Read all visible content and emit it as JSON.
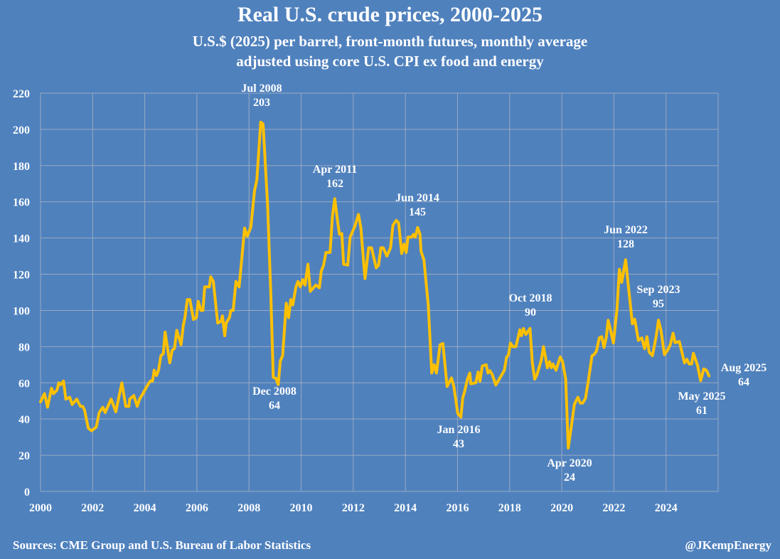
{
  "title": "Real U.S. crude prices, 2000-2025",
  "subtitle_1": "U.S.$ (2025) per barrel, front-month futures, monthly average",
  "subtitle_2": "adjusted using core U.S. CPI ex food and energy",
  "footer": {
    "source": "Sources: CME Group and U.S. Bureau of Labor Statistics",
    "handle": "@JKempEnergy"
  },
  "colors": {
    "background": "#4F81BD",
    "line": "#FFC000",
    "grid": "#9AAAC2",
    "text": "#FFFFFF"
  },
  "chart_data": {
    "type": "line",
    "title": "Real U.S. crude prices, 2000-2025",
    "xlabel": "",
    "ylabel": "U.S.$ (2025) per barrel",
    "xlim": [
      2000,
      2026
    ],
    "ylim": [
      0,
      220
    ],
    "x_ticks": [
      "2000",
      "2002",
      "2004",
      "2006",
      "2008",
      "2010",
      "2012",
      "2014",
      "2016",
      "2018",
      "2020",
      "2022",
      "2024"
    ],
    "y_ticks": [
      "0",
      "20",
      "40",
      "60",
      "80",
      "100",
      "120",
      "140",
      "160",
      "180",
      "200",
      "220"
    ],
    "grid": true,
    "series": [
      {
        "name": "Real crude price",
        "points": [
          [
            2000.0,
            49.5
          ],
          [
            2000.15,
            54
          ],
          [
            2000.27,
            46.5
          ],
          [
            2000.42,
            57
          ],
          [
            2000.5,
            54
          ],
          [
            2000.63,
            56
          ],
          [
            2000.7,
            60
          ],
          [
            2000.78,
            59
          ],
          [
            2000.88,
            61
          ],
          [
            2000.97,
            51
          ],
          [
            2001.12,
            52
          ],
          [
            2001.21,
            48
          ],
          [
            2001.39,
            51
          ],
          [
            2001.53,
            47
          ],
          [
            2001.62,
            47
          ],
          [
            2001.69,
            45
          ],
          [
            2001.83,
            35
          ],
          [
            2001.96,
            33.5
          ],
          [
            2002.14,
            35.6
          ],
          [
            2002.25,
            43.6
          ],
          [
            2002.39,
            46.5
          ],
          [
            2002.48,
            43.6
          ],
          [
            2002.71,
            51
          ],
          [
            2002.89,
            44
          ],
          [
            2003.12,
            60
          ],
          [
            2003.27,
            47
          ],
          [
            2003.39,
            47
          ],
          [
            2003.42,
            51
          ],
          [
            2003.58,
            53
          ],
          [
            2003.71,
            47
          ],
          [
            2003.8,
            51
          ],
          [
            2003.93,
            54
          ],
          [
            2004.08,
            58
          ],
          [
            2004.21,
            61
          ],
          [
            2004.3,
            61
          ],
          [
            2004.36,
            67
          ],
          [
            2004.45,
            64
          ],
          [
            2004.53,
            67
          ],
          [
            2004.62,
            75
          ],
          [
            2004.71,
            76
          ],
          [
            2004.78,
            88
          ],
          [
            2004.96,
            71
          ],
          [
            2005.05,
            78
          ],
          [
            2005.14,
            79
          ],
          [
            2005.23,
            89
          ],
          [
            2005.39,
            81
          ],
          [
            2005.48,
            92
          ],
          [
            2005.54,
            96
          ],
          [
            2005.63,
            106
          ],
          [
            2005.73,
            106
          ],
          [
            2005.87,
            95
          ],
          [
            2005.98,
            96
          ],
          [
            2006.05,
            105
          ],
          [
            2006.16,
            100
          ],
          [
            2006.23,
            100
          ],
          [
            2006.3,
            113
          ],
          [
            2006.48,
            113
          ],
          [
            2006.53,
            118.6
          ],
          [
            2006.63,
            116
          ],
          [
            2006.8,
            93
          ],
          [
            2006.93,
            94
          ],
          [
            2006.98,
            97
          ],
          [
            2007.07,
            86
          ],
          [
            2007.12,
            93
          ],
          [
            2007.25,
            96
          ],
          [
            2007.3,
            100
          ],
          [
            2007.39,
            100
          ],
          [
            2007.5,
            116
          ],
          [
            2007.62,
            113
          ],
          [
            2007.71,
            126.6
          ],
          [
            2007.83,
            145.5
          ],
          [
            2007.93,
            141
          ],
          [
            2008.07,
            146
          ],
          [
            2008.21,
            166
          ],
          [
            2008.3,
            172
          ],
          [
            2008.45,
            204
          ],
          [
            2008.54,
            203
          ],
          [
            2008.71,
            158.6
          ],
          [
            2008.84,
            107.7
          ],
          [
            2008.93,
            63
          ],
          [
            2009.03,
            62.5
          ],
          [
            2009.12,
            59
          ],
          [
            2009.2,
            72
          ],
          [
            2009.29,
            75
          ],
          [
            2009.43,
            104
          ],
          [
            2009.52,
            96
          ],
          [
            2009.6,
            106
          ],
          [
            2009.68,
            103
          ],
          [
            2009.8,
            113
          ],
          [
            2009.88,
            116
          ],
          [
            2009.97,
            113
          ],
          [
            2010.06,
            117
          ],
          [
            2010.15,
            114
          ],
          [
            2010.26,
            125.5
          ],
          [
            2010.35,
            110.5
          ],
          [
            2010.56,
            114
          ],
          [
            2010.7,
            112.5
          ],
          [
            2010.77,
            121.6
          ],
          [
            2010.86,
            125
          ],
          [
            2010.95,
            132
          ],
          [
            2011.11,
            132
          ],
          [
            2011.2,
            152
          ],
          [
            2011.29,
            161.7
          ],
          [
            2011.41,
            148
          ],
          [
            2011.47,
            142
          ],
          [
            2011.56,
            142.5
          ],
          [
            2011.63,
            125.5
          ],
          [
            2011.79,
            125
          ],
          [
            2011.88,
            140.5
          ],
          [
            2012.06,
            146.4
          ],
          [
            2012.2,
            153
          ],
          [
            2012.29,
            145.8
          ],
          [
            2012.45,
            117.6
          ],
          [
            2012.59,
            134.6
          ],
          [
            2012.7,
            134.6
          ],
          [
            2012.88,
            123.5
          ],
          [
            2012.97,
            125
          ],
          [
            2013.06,
            134.6
          ],
          [
            2013.15,
            134.6
          ],
          [
            2013.29,
            130
          ],
          [
            2013.43,
            134.6
          ],
          [
            2013.52,
            147
          ],
          [
            2013.65,
            149.7
          ],
          [
            2013.74,
            148.4
          ],
          [
            2013.86,
            131.4
          ],
          [
            2013.95,
            136.6
          ],
          [
            2014.03,
            132
          ],
          [
            2014.1,
            140.5
          ],
          [
            2014.24,
            140.5
          ],
          [
            2014.31,
            142
          ],
          [
            2014.38,
            140.5
          ],
          [
            2014.47,
            145.8
          ],
          [
            2014.56,
            142
          ],
          [
            2014.6,
            132.7
          ],
          [
            2014.71,
            128
          ],
          [
            2014.88,
            102.6
          ],
          [
            2015.01,
            65.4
          ],
          [
            2015.1,
            70
          ],
          [
            2015.19,
            65.4
          ],
          [
            2015.33,
            81
          ],
          [
            2015.44,
            81.7
          ],
          [
            2015.6,
            58
          ],
          [
            2015.77,
            62.7
          ],
          [
            2015.86,
            58
          ],
          [
            2016.01,
            43
          ],
          [
            2016.13,
            41
          ],
          [
            2016.2,
            51.6
          ],
          [
            2016.28,
            55.6
          ],
          [
            2016.38,
            62
          ],
          [
            2016.47,
            65.4
          ],
          [
            2016.51,
            59.5
          ],
          [
            2016.7,
            60
          ],
          [
            2016.79,
            66
          ],
          [
            2016.86,
            60.8
          ],
          [
            2016.95,
            69.3
          ],
          [
            2017.1,
            70
          ],
          [
            2017.17,
            65.4
          ],
          [
            2017.24,
            66.7
          ],
          [
            2017.33,
            64.7
          ],
          [
            2017.47,
            58.8
          ],
          [
            2017.6,
            62
          ],
          [
            2017.8,
            67
          ],
          [
            2017.88,
            74
          ],
          [
            2017.96,
            75.6
          ],
          [
            2018.03,
            82
          ],
          [
            2018.12,
            80
          ],
          [
            2018.24,
            80
          ],
          [
            2018.39,
            89.3
          ],
          [
            2018.45,
            86
          ],
          [
            2018.53,
            90
          ],
          [
            2018.62,
            86.7
          ],
          [
            2018.78,
            90
          ],
          [
            2018.87,
            71
          ],
          [
            2018.96,
            62
          ],
          [
            2019.05,
            64.6
          ],
          [
            2019.21,
            72.3
          ],
          [
            2019.3,
            80
          ],
          [
            2019.45,
            68.3
          ],
          [
            2019.53,
            71.7
          ],
          [
            2019.6,
            68.3
          ],
          [
            2019.66,
            70.4
          ],
          [
            2019.78,
            67
          ],
          [
            2019.94,
            74.3
          ],
          [
            2020.03,
            71.7
          ],
          [
            2020.15,
            62
          ],
          [
            2020.25,
            24
          ],
          [
            2020.39,
            38.4
          ],
          [
            2020.48,
            48
          ],
          [
            2020.62,
            52
          ],
          [
            2020.71,
            48.8
          ],
          [
            2020.8,
            48.8
          ],
          [
            2020.91,
            51.4
          ],
          [
            2021.03,
            62
          ],
          [
            2021.16,
            75
          ],
          [
            2021.24,
            75.6
          ],
          [
            2021.33,
            77.5
          ],
          [
            2021.44,
            84.8
          ],
          [
            2021.53,
            85.5
          ],
          [
            2021.62,
            79.5
          ],
          [
            2021.71,
            85.5
          ],
          [
            2021.78,
            94.6
          ],
          [
            2021.87,
            89.4
          ],
          [
            2021.98,
            82
          ],
          [
            2022.12,
            101
          ],
          [
            2022.21,
            122.7
          ],
          [
            2022.3,
            115.5
          ],
          [
            2022.45,
            128
          ],
          [
            2022.54,
            115.5
          ],
          [
            2022.71,
            92.6
          ],
          [
            2022.8,
            95.2
          ],
          [
            2022.94,
            83.5
          ],
          [
            2023.07,
            84.8
          ],
          [
            2023.18,
            78.9
          ],
          [
            2023.27,
            85.5
          ],
          [
            2023.35,
            77
          ],
          [
            2023.48,
            75
          ],
          [
            2023.62,
            85.5
          ],
          [
            2023.71,
            94.6
          ],
          [
            2023.8,
            89.4
          ],
          [
            2023.94,
            75.6
          ],
          [
            2024.07,
            78.3
          ],
          [
            2024.16,
            80.9
          ],
          [
            2024.27,
            87.4
          ],
          [
            2024.35,
            82.2
          ],
          [
            2024.51,
            82.8
          ],
          [
            2024.6,
            77.5
          ],
          [
            2024.71,
            71
          ],
          [
            2024.8,
            73
          ],
          [
            2024.89,
            70.4
          ],
          [
            2024.98,
            70.4
          ],
          [
            2025.05,
            76.3
          ],
          [
            2025.21,
            69.7
          ],
          [
            2025.33,
            61.2
          ],
          [
            2025.45,
            67.7
          ],
          [
            2025.55,
            67
          ],
          [
            2025.65,
            63.8
          ]
        ]
      }
    ],
    "annotations": [
      {
        "label": "Jul 2008",
        "value": "203"
      },
      {
        "label": "Dec 2008",
        "value": "64"
      },
      {
        "label": "Apr 2011",
        "value": "162"
      },
      {
        "label": "Jun 2014",
        "value": "145"
      },
      {
        "label": "Jan 2016",
        "value": "43"
      },
      {
        "label": "Oct 2018",
        "value": "90"
      },
      {
        "label": "Apr 2020",
        "value": "24"
      },
      {
        "label": "Jun 2022",
        "value": "128"
      },
      {
        "label": "Sep 2023",
        "value": "95"
      },
      {
        "label": "May 2025",
        "value": "61"
      },
      {
        "label": "Aug 2025",
        "value": "64"
      }
    ]
  }
}
